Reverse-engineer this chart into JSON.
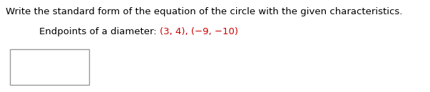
{
  "line1": "Write the standard form of the equation of the circle with the given characteristics.",
  "line2_prefix": "Endpoints of a diameter: ",
  "line2_colored": "(3, 4), (−9, −10)",
  "line1_fontsize": 9.5,
  "line2_fontsize": 9.5,
  "text_color": "#000000",
  "red_color": "#cc0000",
  "bg_color": "#ffffff",
  "border_color": "#999999",
  "fig_width": 6.03,
  "fig_height": 1.29,
  "dpi": 100
}
